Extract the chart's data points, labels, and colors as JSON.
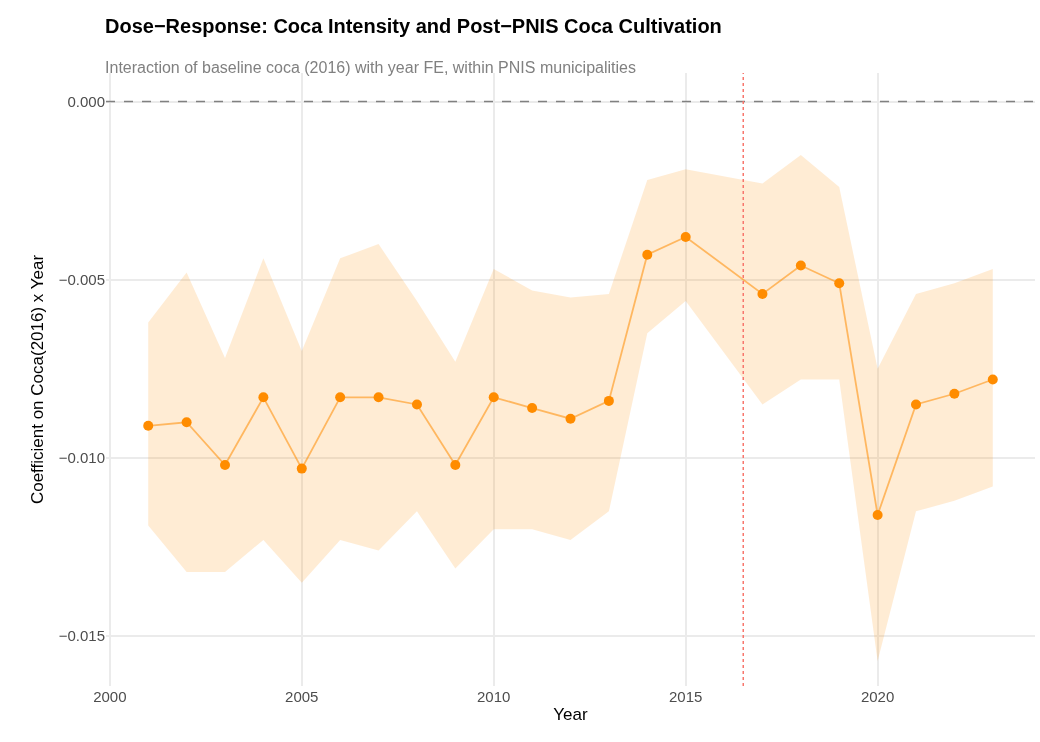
{
  "chart_data": {
    "type": "line",
    "title": "Dose−Response: Coca Intensity and Post−PNIS Coca Cultivation",
    "subtitle": "Interaction of baseline coca (2016) with year FE, within PNIS municipalities",
    "xlabel": "Year",
    "ylabel": "Coefficient on Coca(2016) x Year",
    "x": [
      2001,
      2002,
      2003,
      2004,
      2005,
      2006,
      2007,
      2008,
      2009,
      2010,
      2011,
      2012,
      2013,
      2014,
      2015,
      2017,
      2018,
      2019,
      2020,
      2021,
      2022,
      2023
    ],
    "series": [
      {
        "color": "#ff8c00",
        "values": [
          -0.0091,
          -0.009,
          -0.0102,
          -0.0083,
          -0.0103,
          -0.0083,
          -0.0083,
          -0.0085,
          -0.0102,
          -0.0083,
          -0.0086,
          -0.0089,
          -0.0084,
          -0.0043,
          -0.0038,
          -0.0054,
          -0.0046,
          -0.0051,
          -0.0116,
          -0.0085,
          -0.0082,
          -0.0078
        ],
        "lower": [
          -0.0119,
          -0.0132,
          -0.0132,
          -0.0123,
          -0.0135,
          -0.0123,
          -0.0126,
          -0.0115,
          -0.0131,
          -0.012,
          -0.012,
          -0.0123,
          -0.0115,
          -0.0065,
          -0.0056,
          -0.0085,
          -0.0078,
          -0.0078,
          -0.0157,
          -0.0115,
          -0.0112,
          -0.0108
        ],
        "upper": [
          -0.0062,
          -0.0048,
          -0.0072,
          -0.0044,
          -0.007,
          -0.0044,
          -0.004,
          -0.0056,
          -0.0073,
          -0.0047,
          -0.0053,
          -0.0055,
          -0.0054,
          -0.0022,
          -0.0019,
          -0.0023,
          -0.0015,
          -0.0024,
          -0.0075,
          -0.0054,
          -0.0051,
          -0.0047
        ]
      }
    ],
    "xlim": [
      1999.9,
      2024.1
    ],
    "xticks": [
      2000,
      2005,
      2010,
      2015,
      2020
    ],
    "ylim": [
      -0.0164,
      0.0008
    ],
    "yticks": [
      {
        "value": 0,
        "label": "0.000"
      },
      {
        "value": -0.005,
        "label": "−0.005"
      },
      {
        "value": -0.01,
        "label": "−0.010"
      },
      {
        "value": -0.015,
        "label": "−0.015"
      }
    ],
    "ref_lines": [
      {
        "axis": "y",
        "value": 0,
        "color": "#808080",
        "line_style": "dashed"
      },
      {
        "axis": "x",
        "value": 2016.5,
        "color": "#f8766d",
        "line_style": "dotted"
      }
    ],
    "grid": true,
    "marker": "circle",
    "line_style": "solid"
  }
}
